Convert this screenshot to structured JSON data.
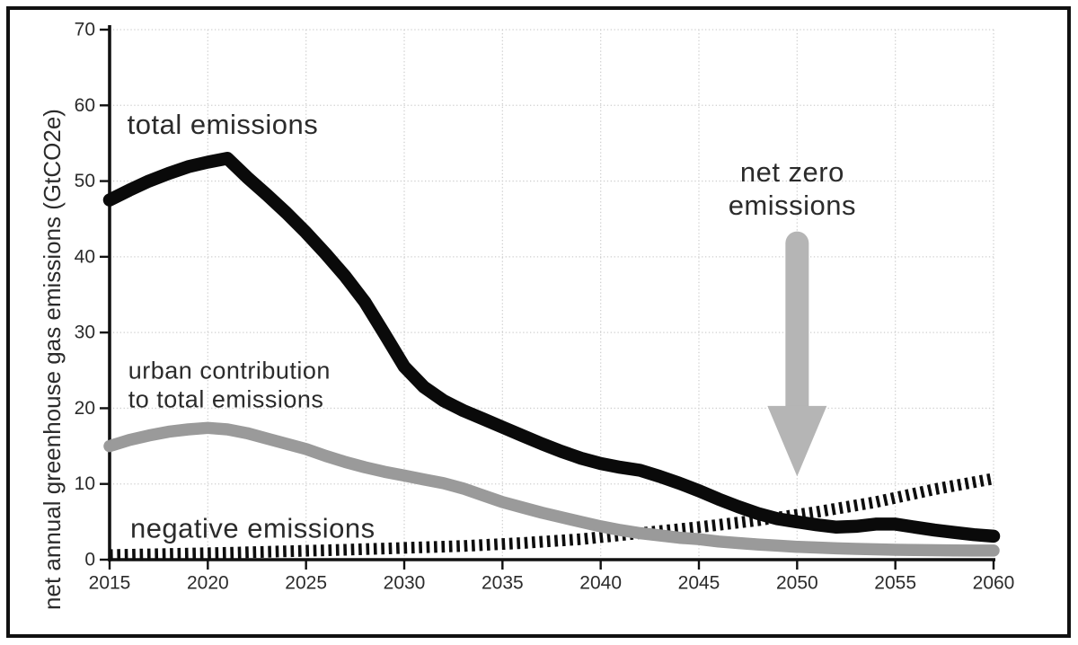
{
  "frame": {
    "border_color": "#111111",
    "background": "#ffffff"
  },
  "chart_data": {
    "type": "line",
    "title": "",
    "xlabel": "",
    "ylabel": "net annual greenhouse gas emissions (GtCO2e)",
    "xlim": [
      2015,
      2060
    ],
    "ylim": [
      0,
      70
    ],
    "x_ticks": [
      2015,
      2020,
      2025,
      2030,
      2035,
      2040,
      2045,
      2050,
      2055,
      2060
    ],
    "y_ticks": [
      0,
      10,
      20,
      30,
      40,
      50,
      60,
      70
    ],
    "grid": "dotted",
    "grid_color": "#cfcfcf",
    "axis_color": "#111111",
    "tick_label_color": "#2b2b2b",
    "annotation_color": "#2b2b2b",
    "legend_position": "none",
    "series": [
      {
        "name": "negative emissions",
        "style": "dashed-bars",
        "color": "#0d0d0d",
        "width": 13,
        "x": [
          2015,
          2018,
          2021,
          2024,
          2027,
          2030,
          2033,
          2036,
          2039,
          2042,
          2045,
          2048,
          2051,
          2054,
          2057,
          2060
        ],
        "values": [
          0.6,
          0.75,
          0.9,
          1.1,
          1.3,
          1.55,
          1.8,
          2.2,
          2.7,
          3.5,
          4.3,
          5.2,
          6.3,
          7.6,
          9.3,
          10.7
        ]
      },
      {
        "name": "urban contribution to total emissions",
        "style": "solid",
        "color": "#9a9a9a",
        "width": 13.5,
        "x": [
          2015,
          2016,
          2017,
          2018,
          2019,
          2020,
          2021,
          2022,
          2023,
          2024,
          2025,
          2026,
          2027,
          2028,
          2029,
          2030,
          2031,
          2032,
          2033,
          2034,
          2035,
          2036,
          2037,
          2038,
          2039,
          2040,
          2041,
          2042,
          2043,
          2044,
          2045,
          2046,
          2047,
          2048,
          2049,
          2050,
          2051,
          2052,
          2053,
          2054,
          2055,
          2056,
          2057,
          2058,
          2059,
          2060
        ],
        "values": [
          15.0,
          15.8,
          16.4,
          16.9,
          17.2,
          17.4,
          17.2,
          16.7,
          16.0,
          15.3,
          14.6,
          13.7,
          12.9,
          12.2,
          11.6,
          11.1,
          10.6,
          10.1,
          9.4,
          8.5,
          7.6,
          6.9,
          6.2,
          5.6,
          5.0,
          4.4,
          3.9,
          3.5,
          3.2,
          2.9,
          2.7,
          2.4,
          2.2,
          2.0,
          1.85,
          1.7,
          1.6,
          1.5,
          1.42,
          1.36,
          1.3,
          1.27,
          1.24,
          1.22,
          1.2,
          1.2
        ]
      },
      {
        "name": "total emissions",
        "style": "solid",
        "color": "#0a0a0a",
        "width": 14.5,
        "x": [
          2015,
          2016,
          2017,
          2018,
          2019,
          2020,
          2021,
          2022,
          2023,
          2024,
          2025,
          2026,
          2027,
          2028,
          2029,
          2030,
          2031,
          2032,
          2033,
          2034,
          2035,
          2036,
          2037,
          2038,
          2039,
          2040,
          2041,
          2042,
          2043,
          2044,
          2045,
          2046,
          2047,
          2048,
          2049,
          2050,
          2051,
          2052,
          2053,
          2054,
          2055,
          2056,
          2057,
          2058,
          2059,
          2060
        ],
        "values": [
          47.5,
          48.8,
          50.0,
          51.0,
          51.9,
          52.5,
          53.0,
          50.5,
          48.2,
          45.8,
          43.2,
          40.4,
          37.4,
          34.0,
          29.8,
          25.5,
          22.8,
          21.0,
          19.7,
          18.6,
          17.5,
          16.4,
          15.3,
          14.3,
          13.4,
          12.7,
          12.2,
          11.8,
          11.0,
          10.1,
          9.1,
          8.0,
          7.0,
          6.1,
          5.4,
          5.0,
          4.6,
          4.3,
          4.4,
          4.7,
          4.7,
          4.3,
          3.9,
          3.6,
          3.3,
          3.1
        ]
      }
    ],
    "annotations": [
      {
        "id": "total-label",
        "text": "total emissions",
        "year": 2015.9,
        "value": 57.5,
        "anchor": "start",
        "size": 31
      },
      {
        "id": "urban-label-1",
        "text": "urban contribution",
        "year": 2015.95,
        "value": 25.0,
        "anchor": "start",
        "size": 27
      },
      {
        "id": "urban-label-2",
        "text": "to total emissions",
        "year": 2015.95,
        "value": 21.2,
        "anchor": "start",
        "size": 27
      },
      {
        "id": "negative-label",
        "text": "negative emissions",
        "year": 2016.05,
        "value": 4.15,
        "anchor": "start",
        "size": 31
      },
      {
        "id": "netzero-label-1",
        "text": "net zero",
        "year": 2049.75,
        "value": 51.2,
        "anchor": "middle",
        "size": 31
      },
      {
        "id": "netzero-label-2",
        "text": "emissions",
        "year": 2049.75,
        "value": 46.8,
        "anchor": "middle",
        "size": 31
      }
    ],
    "arrow": {
      "name": "net-zero-arrow",
      "color": "#b5b5b5",
      "year": 2050,
      "shaft_top_value": 41.8,
      "head_top_value": 20.3,
      "tip_value": 11.0,
      "shaft_width": 26,
      "head_width": 66
    }
  }
}
